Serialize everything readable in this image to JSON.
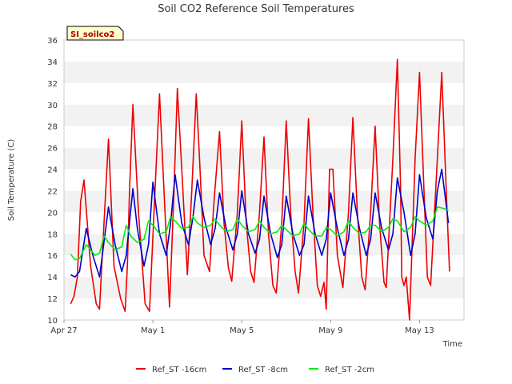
{
  "chart_data": {
    "type": "line",
    "title": "Soil CO2 Reference Soil Temperatures",
    "xlabel": "Time",
    "ylabel": "Soil Temperature (C)",
    "site_label": "SI_soilco2",
    "ylim": [
      10,
      36
    ],
    "yticks": [
      10,
      12,
      14,
      16,
      18,
      20,
      22,
      24,
      26,
      28,
      30,
      32,
      34,
      36
    ],
    "xlim": [
      0,
      18
    ],
    "xticks": [
      {
        "x": 0,
        "label": "Apr 27"
      },
      {
        "x": 4,
        "label": "May 1"
      },
      {
        "x": 8,
        "label": "May 5"
      },
      {
        "x": 12,
        "label": "May 9"
      },
      {
        "x": 16,
        "label": "May 13"
      }
    ],
    "grid": "horizontal bands",
    "legend_position": "bottom",
    "series": [
      {
        "name": "Ref_ST -16cm",
        "color": "#ee0000",
        "x": [
          0.3,
          0.45,
          0.6,
          0.75,
          0.9,
          1.2,
          1.45,
          1.6,
          1.8,
          2.0,
          2.25,
          2.55,
          2.75,
          2.85,
          2.95,
          3.1,
          3.35,
          3.65,
          3.85,
          4.05,
          4.3,
          4.5,
          4.75,
          4.95,
          5.1,
          5.3,
          5.55,
          5.75,
          5.95,
          6.1,
          6.3,
          6.55,
          6.75,
          7.0,
          7.2,
          7.4,
          7.55,
          7.8,
          8.0,
          8.2,
          8.4,
          8.55,
          8.8,
          9.0,
          9.2,
          9.4,
          9.55,
          9.8,
          10.0,
          10.2,
          10.4,
          10.55,
          10.8,
          11.0,
          11.2,
          11.4,
          11.55,
          11.7,
          11.8,
          11.95,
          12.1,
          12.3,
          12.55,
          12.8,
          13.0,
          13.2,
          13.4,
          13.55,
          13.8,
          14.0,
          14.2,
          14.4,
          14.5,
          14.8,
          15.0,
          15.15,
          15.2,
          15.3,
          15.4,
          15.55,
          15.8,
          16.0,
          16.2,
          16.35,
          16.5,
          16.8,
          17.0,
          17.2,
          17.35
        ],
        "y": [
          11.5,
          12.2,
          14.0,
          21.0,
          23.0,
          15.0,
          11.5,
          11.0,
          19.0,
          26.8,
          15.0,
          12.0,
          10.8,
          15.0,
          22.0,
          30.0,
          20.0,
          11.5,
          10.8,
          20.0,
          31.0,
          22.0,
          11.2,
          22.0,
          31.5,
          24.0,
          14.2,
          22.0,
          31.0,
          25.0,
          16.0,
          14.5,
          21.0,
          27.5,
          19.0,
          14.8,
          13.6,
          20.0,
          28.5,
          19.0,
          14.5,
          13.5,
          20.0,
          27.0,
          18.0,
          13.2,
          12.5,
          19.0,
          28.5,
          20.0,
          14.5,
          12.5,
          19.0,
          28.7,
          20.0,
          13.2,
          12.2,
          13.5,
          11.0,
          24.0,
          24.0,
          16.0,
          13.0,
          20.0,
          28.8,
          20.0,
          14.0,
          12.8,
          20.0,
          28.0,
          19.0,
          13.5,
          13.0,
          25.0,
          34.2,
          22.0,
          14.0,
          13.2,
          14.0,
          10.0,
          25.0,
          33.0,
          22.0,
          14.0,
          13.2,
          25.0,
          33.0,
          22.0,
          14.5
        ]
      },
      {
        "name": "Ref_ST -8cm",
        "color": "#0000cc",
        "x": [
          0.3,
          0.5,
          0.7,
          1.0,
          1.3,
          1.6,
          2.0,
          2.3,
          2.6,
          2.8,
          3.1,
          3.3,
          3.6,
          3.8,
          4.0,
          4.3,
          4.6,
          4.8,
          5.0,
          5.3,
          5.6,
          5.8,
          6.0,
          6.3,
          6.6,
          6.8,
          7.0,
          7.3,
          7.6,
          7.8,
          8.0,
          8.3,
          8.6,
          8.8,
          9.0,
          9.3,
          9.6,
          9.8,
          10.0,
          10.3,
          10.6,
          10.8,
          11.0,
          11.3,
          11.6,
          11.8,
          12.0,
          12.3,
          12.6,
          12.8,
          13.0,
          13.3,
          13.6,
          13.8,
          14.0,
          14.3,
          14.6,
          14.8,
          15.0,
          15.3,
          15.6,
          15.8,
          16.0,
          16.3,
          16.6,
          16.8,
          17.0,
          17.3
        ],
        "y": [
          14.2,
          14.0,
          14.5,
          18.5,
          16.0,
          14.0,
          20.5,
          17.0,
          14.5,
          16.0,
          22.2,
          18.5,
          15.0,
          17.0,
          22.8,
          18.0,
          16.0,
          19.0,
          23.5,
          19.0,
          17.0,
          19.5,
          23.0,
          19.5,
          17.0,
          18.5,
          21.8,
          18.5,
          16.5,
          18.0,
          22.0,
          18.0,
          16.2,
          17.5,
          21.5,
          18.0,
          15.8,
          17.0,
          21.5,
          18.0,
          16.0,
          17.0,
          21.5,
          18.0,
          16.0,
          17.5,
          21.8,
          18.5,
          16.0,
          17.5,
          21.8,
          18.5,
          16.0,
          17.5,
          21.8,
          18.5,
          16.5,
          18.0,
          23.2,
          20.0,
          16.0,
          18.0,
          23.5,
          19.5,
          17.5,
          22.0,
          24.0,
          19.0
        ]
      },
      {
        "name": "Ref_ST -2cm",
        "color": "#00ee00",
        "x": [
          0.3,
          0.5,
          0.7,
          1.0,
          1.2,
          1.4,
          1.6,
          1.8,
          2.0,
          2.3,
          2.6,
          2.8,
          3.0,
          3.3,
          3.6,
          3.8,
          4.0,
          4.3,
          4.6,
          4.8,
          5.0,
          5.3,
          5.6,
          5.8,
          6.0,
          6.3,
          6.6,
          6.8,
          7.0,
          7.3,
          7.6,
          7.8,
          8.0,
          8.3,
          8.6,
          8.8,
          9.0,
          9.3,
          9.6,
          9.8,
          10.0,
          10.3,
          10.6,
          10.8,
          11.0,
          11.3,
          11.6,
          11.8,
          12.0,
          12.3,
          12.6,
          12.8,
          13.0,
          13.3,
          13.6,
          13.8,
          14.0,
          14.3,
          14.6,
          14.8,
          15.0,
          15.3,
          15.6,
          15.8,
          16.0,
          16.3,
          16.6,
          16.8,
          17.0,
          17.3
        ],
        "y": [
          16.1,
          15.6,
          15.7,
          17.0,
          16.5,
          16.0,
          16.2,
          17.8,
          17.2,
          16.5,
          16.8,
          18.8,
          17.8,
          17.2,
          17.5,
          19.2,
          18.8,
          18.0,
          18.2,
          19.6,
          19.2,
          18.5,
          18.6,
          19.6,
          19.0,
          18.6,
          18.8,
          19.4,
          18.8,
          18.2,
          18.4,
          19.4,
          18.8,
          18.2,
          18.4,
          19.2,
          18.6,
          18.0,
          18.2,
          18.8,
          18.4,
          17.8,
          18.0,
          19.0,
          18.4,
          17.8,
          17.8,
          18.6,
          18.4,
          17.8,
          18.2,
          19.2,
          18.6,
          18.0,
          18.2,
          18.8,
          18.8,
          18.2,
          18.6,
          19.4,
          19.2,
          18.2,
          18.6,
          19.6,
          19.2,
          18.8,
          19.2,
          20.5,
          20.4,
          20.2
        ]
      }
    ]
  }
}
